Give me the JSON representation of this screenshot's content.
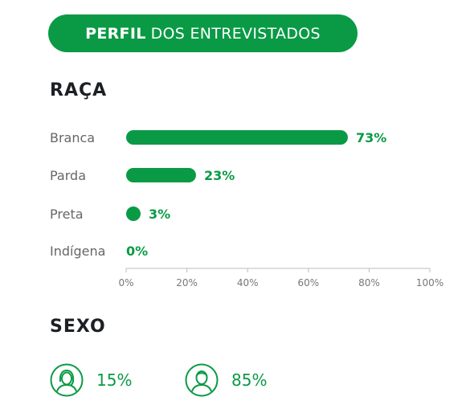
{
  "header": {
    "title_bold": "PERFIL",
    "title_rest": "DOS ENTREVISTADOS"
  },
  "sections": {
    "raca": "RAÇA",
    "sexo": "SEXO"
  },
  "chart_data": {
    "type": "bar",
    "orientation": "horizontal",
    "title": "RAÇA",
    "categories": [
      "Branca",
      "Parda",
      "Preta",
      "Indígena"
    ],
    "values": [
      73,
      23,
      3,
      0
    ],
    "value_labels": [
      "73%",
      "23%",
      "3%",
      "0%"
    ],
    "xlim": [
      0,
      100
    ],
    "ticks": [
      0,
      20,
      40,
      60,
      80,
      100
    ],
    "tick_labels": [
      "0%",
      "20%",
      "40%",
      "60%",
      "80%",
      "100%"
    ],
    "grid": false,
    "bar_color": "#0a9a45"
  },
  "sexo": [
    {
      "icon": "female-person-icon",
      "value": "15%"
    },
    {
      "icon": "male-person-icon",
      "value": "85%"
    }
  ],
  "colors": {
    "accent": "#0a9a45",
    "text": "#1c2024",
    "muted": "#666666"
  }
}
